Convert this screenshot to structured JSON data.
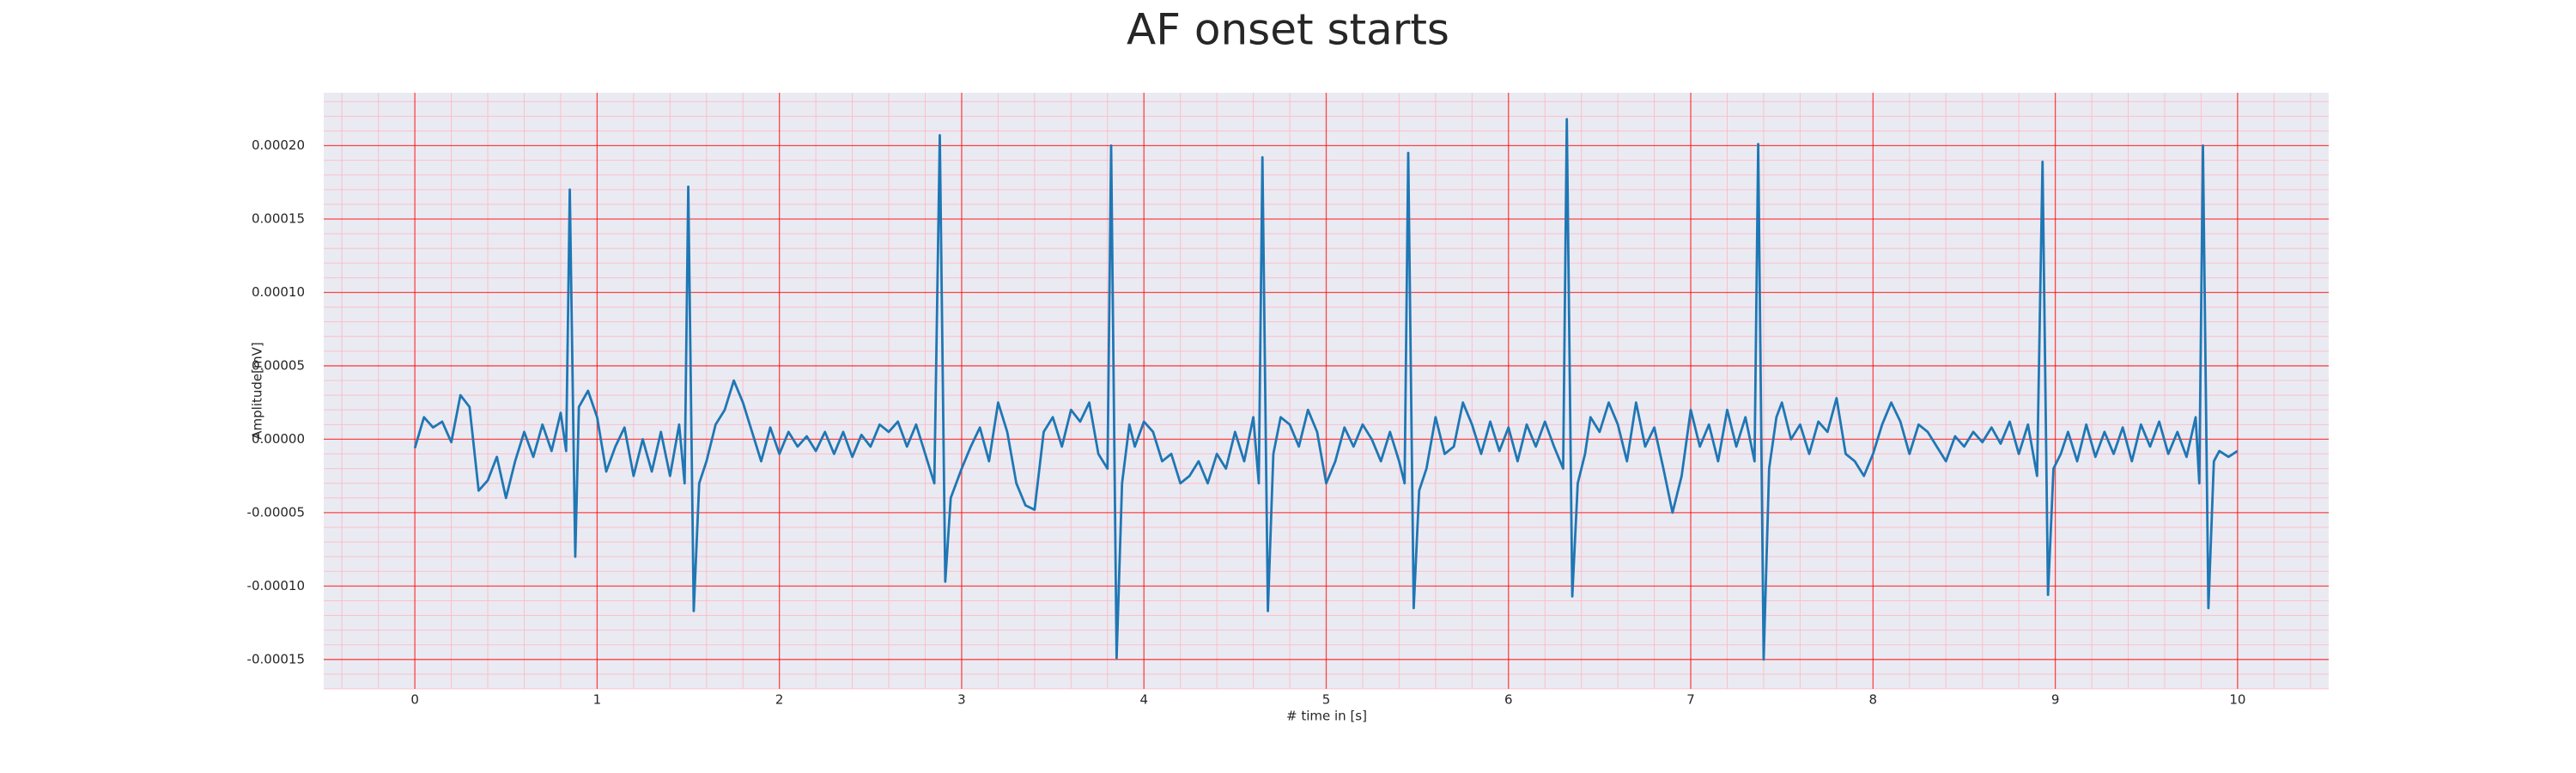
{
  "chart_data": {
    "type": "line",
    "title": "AF onset starts",
    "x_label": "# time in [s]",
    "y_label": "Amplitude[mV]",
    "color": "#1f77b4",
    "grid": true,
    "minor_grid": true,
    "xlim": [
      -0.5,
      10.5
    ],
    "ylim": [
      -0.00017,
      0.000236
    ],
    "xticks": [
      0,
      1,
      2,
      3,
      4,
      5,
      6,
      7,
      8,
      9,
      10
    ],
    "yticks": [
      {
        "value": -0.00015,
        "label": "-0.00015"
      },
      {
        "value": -0.0001,
        "label": "-0.00010"
      },
      {
        "value": -5e-05,
        "label": "-0.00005"
      },
      {
        "value": 0,
        "label": "0.00000"
      },
      {
        "value": 5e-05,
        "label": "0.00005"
      },
      {
        "value": 0.0001,
        "label": "0.00010"
      },
      {
        "value": 0.00015,
        "label": "0.00015"
      },
      {
        "value": 0.0002,
        "label": "0.00020"
      }
    ],
    "x": [
      0.0,
      0.05,
      0.1,
      0.15,
      0.2,
      0.25,
      0.3,
      0.35,
      0.4,
      0.45,
      0.5,
      0.55,
      0.6,
      0.65,
      0.7,
      0.75,
      0.8,
      0.83,
      0.85,
      0.88,
      0.9,
      0.95,
      1.0,
      1.05,
      1.1,
      1.15,
      1.2,
      1.25,
      1.3,
      1.35,
      1.4,
      1.45,
      1.48,
      1.5,
      1.53,
      1.56,
      1.6,
      1.65,
      1.7,
      1.75,
      1.8,
      1.85,
      1.9,
      1.95,
      2.0,
      2.05,
      2.1,
      2.15,
      2.2,
      2.25,
      2.3,
      2.35,
      2.4,
      2.45,
      2.5,
      2.55,
      2.6,
      2.65,
      2.7,
      2.75,
      2.8,
      2.85,
      2.88,
      2.91,
      2.94,
      3.0,
      3.05,
      3.1,
      3.15,
      3.2,
      3.25,
      3.3,
      3.35,
      3.4,
      3.45,
      3.5,
      3.55,
      3.6,
      3.65,
      3.7,
      3.75,
      3.8,
      3.82,
      3.85,
      3.88,
      3.92,
      3.95,
      4.0,
      4.05,
      4.1,
      4.15,
      4.2,
      4.25,
      4.3,
      4.35,
      4.4,
      4.45,
      4.5,
      4.55,
      4.6,
      4.63,
      4.65,
      4.68,
      4.71,
      4.75,
      4.8,
      4.85,
      4.9,
      4.95,
      5.0,
      5.05,
      5.1,
      5.15,
      5.2,
      5.25,
      5.3,
      5.35,
      5.4,
      5.43,
      5.45,
      5.48,
      5.51,
      5.55,
      5.6,
      5.65,
      5.7,
      5.75,
      5.8,
      5.85,
      5.9,
      5.95,
      6.0,
      6.05,
      6.1,
      6.15,
      6.2,
      6.25,
      6.3,
      6.32,
      6.35,
      6.38,
      6.42,
      6.45,
      6.5,
      6.55,
      6.6,
      6.65,
      6.7,
      6.75,
      6.8,
      6.85,
      6.9,
      6.95,
      7.0,
      7.05,
      7.1,
      7.15,
      7.2,
      7.25,
      7.3,
      7.35,
      7.37,
      7.4,
      7.43,
      7.47,
      7.5,
      7.55,
      7.6,
      7.65,
      7.7,
      7.75,
      7.8,
      7.85,
      7.9,
      7.95,
      8.0,
      8.05,
      8.1,
      8.15,
      8.2,
      8.25,
      8.3,
      8.35,
      8.4,
      8.45,
      8.5,
      8.55,
      8.6,
      8.65,
      8.7,
      8.75,
      8.8,
      8.85,
      8.9,
      8.93,
      8.96,
      8.99,
      9.03,
      9.07,
      9.12,
      9.17,
      9.22,
      9.27,
      9.32,
      9.37,
      9.42,
      9.47,
      9.52,
      9.57,
      9.62,
      9.67,
      9.72,
      9.77,
      9.79,
      9.81,
      9.84,
      9.87,
      9.9,
      9.95,
      10.0
    ],
    "values": [
      -6e-06,
      1.5e-05,
      8e-06,
      1.2e-05,
      -2e-06,
      3e-05,
      2.2e-05,
      -3.5e-05,
      -2.8e-05,
      -1.2e-05,
      -4e-05,
      -1.5e-05,
      5e-06,
      -1.2e-05,
      1e-05,
      -8e-06,
      1.8e-05,
      -8e-06,
      0.00017,
      -8e-05,
      2.2e-05,
      3.3e-05,
      1.5e-05,
      -2.2e-05,
      -5e-06,
      8e-06,
      -2.5e-05,
      0.0,
      -2.2e-05,
      5e-06,
      -2.5e-05,
      1e-05,
      -3e-05,
      0.000172,
      -0.000117,
      -3e-05,
      -1.5e-05,
      1e-05,
      2e-05,
      4e-05,
      2.5e-05,
      5e-06,
      -1.5e-05,
      8e-06,
      -1e-05,
      5e-06,
      -5e-06,
      2e-06,
      -8e-06,
      5e-06,
      -1e-05,
      5e-06,
      -1.2e-05,
      3e-06,
      -5e-06,
      1e-05,
      5e-06,
      1.2e-05,
      -5e-06,
      1e-05,
      -1e-05,
      -3e-05,
      0.000207,
      -9.7e-05,
      -4e-05,
      -2e-05,
      -5e-06,
      8e-06,
      -1.5e-05,
      2.5e-05,
      5e-06,
      -3e-05,
      -4.5e-05,
      -4.8e-05,
      5e-06,
      1.5e-05,
      -5e-06,
      2e-05,
      1.2e-05,
      2.5e-05,
      -1e-05,
      -2e-05,
      0.0002,
      -0.000149,
      -3e-05,
      1e-05,
      -5e-06,
      1.2e-05,
      5e-06,
      -1.5e-05,
      -1e-05,
      -3e-05,
      -2.5e-05,
      -1.5e-05,
      -3e-05,
      -1e-05,
      -2e-05,
      5e-06,
      -1.5e-05,
      1.5e-05,
      -3e-05,
      0.000192,
      -0.000117,
      -1e-05,
      1.5e-05,
      1e-05,
      -5e-06,
      2e-05,
      5e-06,
      -3e-05,
      -1.5e-05,
      8e-06,
      -5e-06,
      1e-05,
      0.0,
      -1.5e-05,
      5e-06,
      -1.5e-05,
      -3e-05,
      0.000195,
      -0.000115,
      -3.5e-05,
      -2e-05,
      1.5e-05,
      -1e-05,
      -5e-06,
      2.5e-05,
      1e-05,
      -1e-05,
      1.2e-05,
      -8e-06,
      8e-06,
      -1.5e-05,
      1e-05,
      -5e-06,
      1.2e-05,
      -5e-06,
      -2e-05,
      0.000218,
      -0.000107,
      -3e-05,
      -1e-05,
      1.5e-05,
      5e-06,
      2.5e-05,
      1e-05,
      -1.5e-05,
      2.5e-05,
      -5e-06,
      8e-06,
      -2e-05,
      -5e-05,
      -2.5e-05,
      2e-05,
      -5e-06,
      1e-05,
      -1.5e-05,
      2e-05,
      -5e-06,
      1.5e-05,
      -1.5e-05,
      0.000201,
      -0.00015,
      -2e-05,
      1.5e-05,
      2.5e-05,
      0.0,
      1e-05,
      -1e-05,
      1.2e-05,
      5e-06,
      2.8e-05,
      -1e-05,
      -1.5e-05,
      -2.5e-05,
      -1e-05,
      1e-05,
      2.5e-05,
      1.2e-05,
      -1e-05,
      1e-05,
      5e-06,
      -5e-06,
      -1.5e-05,
      2e-06,
      -5e-06,
      5e-06,
      -2e-06,
      8e-06,
      -3e-06,
      1.2e-05,
      -1e-05,
      1e-05,
      -2.5e-05,
      0.000189,
      -0.000106,
      -2e-05,
      -1e-05,
      5e-06,
      -1.5e-05,
      1e-05,
      -1.2e-05,
      5e-06,
      -1e-05,
      8e-06,
      -1.5e-05,
      1e-05,
      -5e-06,
      1.2e-05,
      -1e-05,
      5e-06,
      -1.2e-05,
      1.5e-05,
      -3e-05,
      0.0002,
      -0.000115,
      -1.5e-05,
      -8e-06,
      -1.2e-05,
      -8e-06
    ]
  }
}
